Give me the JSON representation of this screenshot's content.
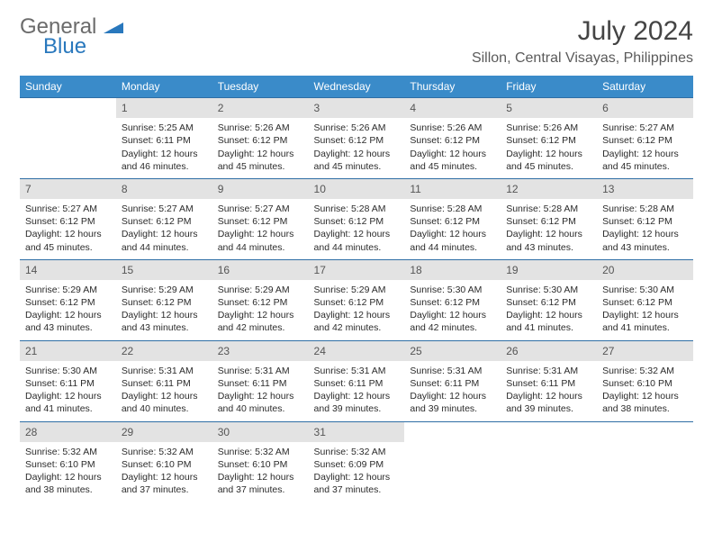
{
  "logo": {
    "word1": "General",
    "word2": "Blue"
  },
  "title": "July 2024",
  "location": "Sillon, Central Visayas, Philippines",
  "colors": {
    "header_bg": "#3a8bc9",
    "header_text": "#ffffff",
    "daynum_bg": "#e3e3e3",
    "row_border": "#2f6ea5",
    "logo_gray": "#6b6b6b",
    "logo_blue": "#2978bd"
  },
  "days_of_week": [
    "Sunday",
    "Monday",
    "Tuesday",
    "Wednesday",
    "Thursday",
    "Friday",
    "Saturday"
  ],
  "weeks": [
    [
      {
        "n": "",
        "empty": true
      },
      {
        "n": "1",
        "sr": "Sunrise: 5:25 AM",
        "ss": "Sunset: 6:11 PM",
        "dl": "Daylight: 12 hours and 46 minutes."
      },
      {
        "n": "2",
        "sr": "Sunrise: 5:26 AM",
        "ss": "Sunset: 6:12 PM",
        "dl": "Daylight: 12 hours and 45 minutes."
      },
      {
        "n": "3",
        "sr": "Sunrise: 5:26 AM",
        "ss": "Sunset: 6:12 PM",
        "dl": "Daylight: 12 hours and 45 minutes."
      },
      {
        "n": "4",
        "sr": "Sunrise: 5:26 AM",
        "ss": "Sunset: 6:12 PM",
        "dl": "Daylight: 12 hours and 45 minutes."
      },
      {
        "n": "5",
        "sr": "Sunrise: 5:26 AM",
        "ss": "Sunset: 6:12 PM",
        "dl": "Daylight: 12 hours and 45 minutes."
      },
      {
        "n": "6",
        "sr": "Sunrise: 5:27 AM",
        "ss": "Sunset: 6:12 PM",
        "dl": "Daylight: 12 hours and 45 minutes."
      }
    ],
    [
      {
        "n": "7",
        "sr": "Sunrise: 5:27 AM",
        "ss": "Sunset: 6:12 PM",
        "dl": "Daylight: 12 hours and 45 minutes."
      },
      {
        "n": "8",
        "sr": "Sunrise: 5:27 AM",
        "ss": "Sunset: 6:12 PM",
        "dl": "Daylight: 12 hours and 44 minutes."
      },
      {
        "n": "9",
        "sr": "Sunrise: 5:27 AM",
        "ss": "Sunset: 6:12 PM",
        "dl": "Daylight: 12 hours and 44 minutes."
      },
      {
        "n": "10",
        "sr": "Sunrise: 5:28 AM",
        "ss": "Sunset: 6:12 PM",
        "dl": "Daylight: 12 hours and 44 minutes."
      },
      {
        "n": "11",
        "sr": "Sunrise: 5:28 AM",
        "ss": "Sunset: 6:12 PM",
        "dl": "Daylight: 12 hours and 44 minutes."
      },
      {
        "n": "12",
        "sr": "Sunrise: 5:28 AM",
        "ss": "Sunset: 6:12 PM",
        "dl": "Daylight: 12 hours and 43 minutes."
      },
      {
        "n": "13",
        "sr": "Sunrise: 5:28 AM",
        "ss": "Sunset: 6:12 PM",
        "dl": "Daylight: 12 hours and 43 minutes."
      }
    ],
    [
      {
        "n": "14",
        "sr": "Sunrise: 5:29 AM",
        "ss": "Sunset: 6:12 PM",
        "dl": "Daylight: 12 hours and 43 minutes."
      },
      {
        "n": "15",
        "sr": "Sunrise: 5:29 AM",
        "ss": "Sunset: 6:12 PM",
        "dl": "Daylight: 12 hours and 43 minutes."
      },
      {
        "n": "16",
        "sr": "Sunrise: 5:29 AM",
        "ss": "Sunset: 6:12 PM",
        "dl": "Daylight: 12 hours and 42 minutes."
      },
      {
        "n": "17",
        "sr": "Sunrise: 5:29 AM",
        "ss": "Sunset: 6:12 PM",
        "dl": "Daylight: 12 hours and 42 minutes."
      },
      {
        "n": "18",
        "sr": "Sunrise: 5:30 AM",
        "ss": "Sunset: 6:12 PM",
        "dl": "Daylight: 12 hours and 42 minutes."
      },
      {
        "n": "19",
        "sr": "Sunrise: 5:30 AM",
        "ss": "Sunset: 6:12 PM",
        "dl": "Daylight: 12 hours and 41 minutes."
      },
      {
        "n": "20",
        "sr": "Sunrise: 5:30 AM",
        "ss": "Sunset: 6:12 PM",
        "dl": "Daylight: 12 hours and 41 minutes."
      }
    ],
    [
      {
        "n": "21",
        "sr": "Sunrise: 5:30 AM",
        "ss": "Sunset: 6:11 PM",
        "dl": "Daylight: 12 hours and 41 minutes."
      },
      {
        "n": "22",
        "sr": "Sunrise: 5:31 AM",
        "ss": "Sunset: 6:11 PM",
        "dl": "Daylight: 12 hours and 40 minutes."
      },
      {
        "n": "23",
        "sr": "Sunrise: 5:31 AM",
        "ss": "Sunset: 6:11 PM",
        "dl": "Daylight: 12 hours and 40 minutes."
      },
      {
        "n": "24",
        "sr": "Sunrise: 5:31 AM",
        "ss": "Sunset: 6:11 PM",
        "dl": "Daylight: 12 hours and 39 minutes."
      },
      {
        "n": "25",
        "sr": "Sunrise: 5:31 AM",
        "ss": "Sunset: 6:11 PM",
        "dl": "Daylight: 12 hours and 39 minutes."
      },
      {
        "n": "26",
        "sr": "Sunrise: 5:31 AM",
        "ss": "Sunset: 6:11 PM",
        "dl": "Daylight: 12 hours and 39 minutes."
      },
      {
        "n": "27",
        "sr": "Sunrise: 5:32 AM",
        "ss": "Sunset: 6:10 PM",
        "dl": "Daylight: 12 hours and 38 minutes."
      }
    ],
    [
      {
        "n": "28",
        "sr": "Sunrise: 5:32 AM",
        "ss": "Sunset: 6:10 PM",
        "dl": "Daylight: 12 hours and 38 minutes."
      },
      {
        "n": "29",
        "sr": "Sunrise: 5:32 AM",
        "ss": "Sunset: 6:10 PM",
        "dl": "Daylight: 12 hours and 37 minutes."
      },
      {
        "n": "30",
        "sr": "Sunrise: 5:32 AM",
        "ss": "Sunset: 6:10 PM",
        "dl": "Daylight: 12 hours and 37 minutes."
      },
      {
        "n": "31",
        "sr": "Sunrise: 5:32 AM",
        "ss": "Sunset: 6:09 PM",
        "dl": "Daylight: 12 hours and 37 minutes."
      },
      {
        "n": "",
        "empty": true
      },
      {
        "n": "",
        "empty": true
      },
      {
        "n": "",
        "empty": true
      }
    ]
  ]
}
